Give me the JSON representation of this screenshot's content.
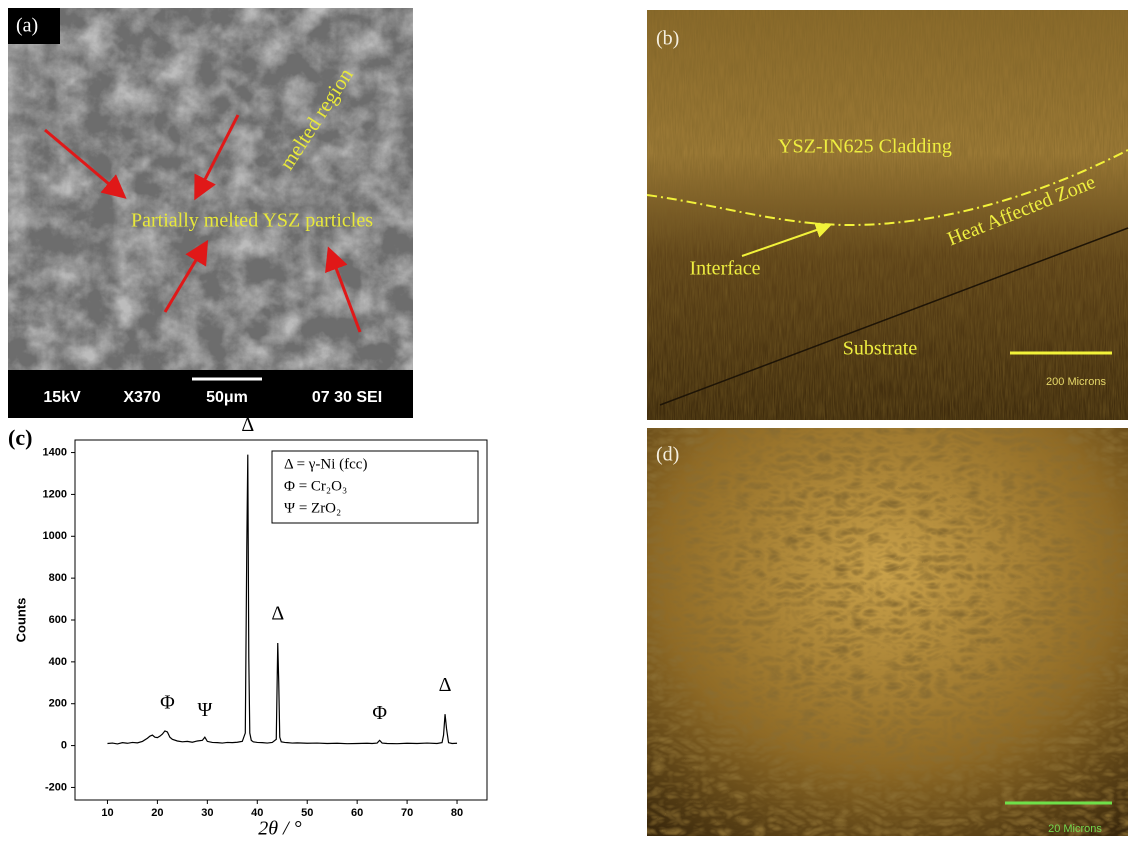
{
  "panels": {
    "a": {
      "label": "(a)",
      "annotations": [
        "melted region",
        "Partially melted YSZ particles"
      ],
      "footer": [
        "15kV",
        "X370",
        "50μm",
        "07 30 SEI"
      ]
    },
    "b": {
      "label": "(b)",
      "annotations": [
        "YSZ-IN625  Cladding",
        "Heat Affected Zone",
        "Interface",
        "Substrate"
      ],
      "scale": "200 Microns"
    },
    "d": {
      "label": "(d)",
      "scale": "20 Microns"
    }
  },
  "chart_data": {
    "type": "line",
    "label": "(c)",
    "y_label": "Counts",
    "x_label": "2θ / °",
    "color": "#000000",
    "legend": [
      "Δ = γ-Ni (fcc)",
      "Φ = Cr₂O₃",
      "Ψ =  ZrO₂"
    ],
    "peak_labels": [
      "Φ",
      "Ψ",
      "Δ",
      "Δ",
      "Φ",
      "Δ"
    ],
    "xlim": [
      3.5,
      86
    ],
    "ylim": [
      -260,
      1460
    ],
    "xticks": [
      10,
      20,
      30,
      40,
      50,
      60,
      70,
      80
    ],
    "yticks": [
      -200,
      0,
      200,
      400,
      600,
      800,
      1000,
      1200,
      1400
    ],
    "x": [
      10,
      11,
      12,
      13,
      14,
      15,
      16,
      17,
      18,
      18.5,
      19,
      19.5,
      20,
      20.5,
      21,
      21.5,
      22,
      22.5,
      23,
      24,
      25,
      26,
      27,
      28,
      29,
      29.5,
      30,
      31,
      32,
      33,
      34,
      35,
      36,
      37,
      37.6,
      37.9,
      38.1,
      38.3,
      38.5,
      38.8,
      39.2,
      40,
      41,
      42,
      43,
      43.8,
      44.1,
      44.3,
      44.5,
      44.8,
      45.5,
      46,
      47,
      48,
      50,
      52,
      54,
      56,
      58,
      60,
      62,
      63,
      64,
      64.5,
      65,
      66,
      68,
      70,
      72,
      74,
      76,
      77,
      77.3,
      77.6,
      77.9,
      78.3,
      79,
      80
    ],
    "values": [
      10,
      12,
      8,
      14,
      11,
      15,
      13,
      20,
      35,
      45,
      50,
      40,
      38,
      45,
      55,
      70,
      65,
      40,
      30,
      22,
      18,
      20,
      16,
      22,
      25,
      40,
      20,
      15,
      14,
      12,
      15,
      14,
      16,
      20,
      60,
      950,
      1390,
      420,
      60,
      25,
      18,
      15,
      14,
      12,
      15,
      30,
      490,
      300,
      40,
      18,
      15,
      14,
      12,
      13,
      11,
      12,
      10,
      11,
      9,
      10,
      11,
      10,
      12,
      25,
      12,
      10,
      9,
      11,
      10,
      12,
      10,
      14,
      50,
      150,
      80,
      14,
      10,
      11
    ]
  }
}
